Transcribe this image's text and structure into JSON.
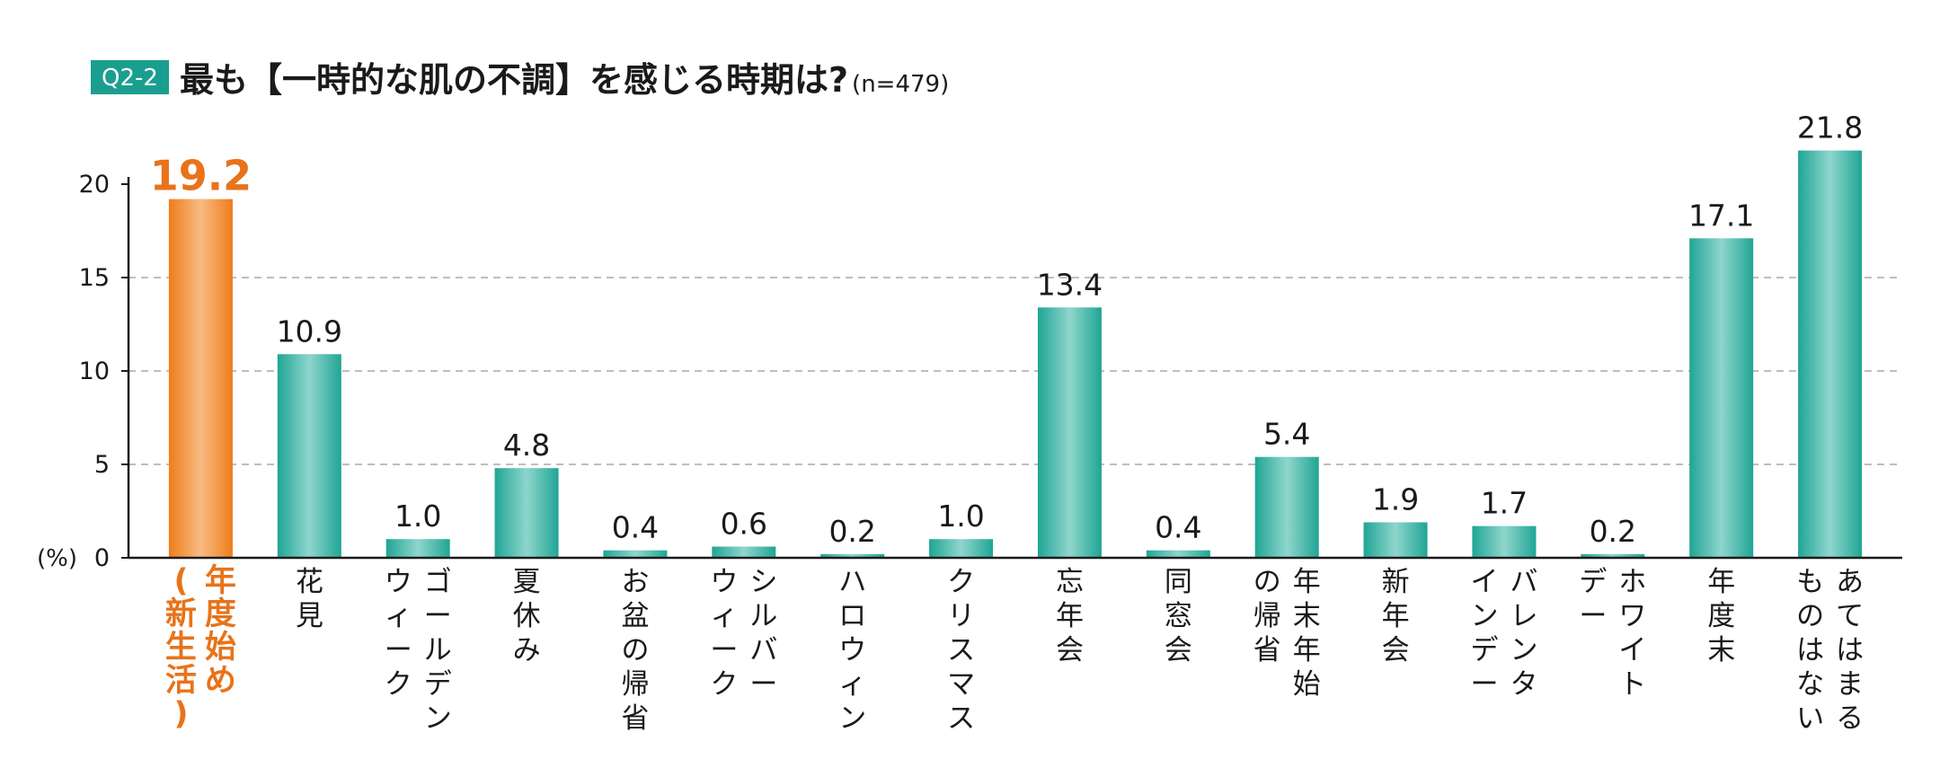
{
  "header": {
    "badge": "Q2-2",
    "title": "最も【一時的な肌の不調】を感じる時期は?",
    "sample": "(n=479)"
  },
  "colors": {
    "badge_bg": "#1a9e8f",
    "bar_teal": "#1fa595",
    "bar_teal_light": "#8fd6cc",
    "bar_orange": "#ef7d1a",
    "bar_orange_light": "#f8bb84",
    "highlight_text": "#e8731a",
    "text": "#1a1a1a",
    "grid": "#a8a8a8"
  },
  "chart_data": {
    "type": "bar",
    "unit_label": "(%)",
    "categories": [
      [
        "年度始め",
        "(新生活)"
      ],
      [
        "花見"
      ],
      [
        "ゴールデン",
        "ウィーク"
      ],
      [
        "夏休み"
      ],
      [
        "お盆の帰省"
      ],
      [
        "シルバー",
        "ウィーク"
      ],
      [
        "ハロウィン"
      ],
      [
        "クリスマス"
      ],
      [
        "忘年会"
      ],
      [
        "同窓会"
      ],
      [
        "年末年始",
        "の帰省"
      ],
      [
        "新年会"
      ],
      [
        "バレンタ",
        "インデー"
      ],
      [
        "ホワイト",
        "デー"
      ],
      [
        "年度末"
      ],
      [
        "あてはまる",
        "ものはない"
      ]
    ],
    "values": [
      19.2,
      10.9,
      1.0,
      4.8,
      0.4,
      0.6,
      0.2,
      1.0,
      13.4,
      0.4,
      5.4,
      1.9,
      1.7,
      0.2,
      17.1,
      21.8
    ],
    "value_labels": [
      "19.2",
      "10.9",
      "1.0",
      "4.8",
      "0.4",
      "0.6",
      "0.2",
      "1.0",
      "13.4",
      "0.4",
      "5.4",
      "1.9",
      "1.7",
      "0.2",
      "17.1",
      "21.8"
    ],
    "highlight_index": 0,
    "ylim": [
      0,
      20
    ],
    "yticks": [
      0,
      5,
      10,
      15,
      20
    ],
    "grid": "dashed horizontal at 5, 10, 15"
  }
}
